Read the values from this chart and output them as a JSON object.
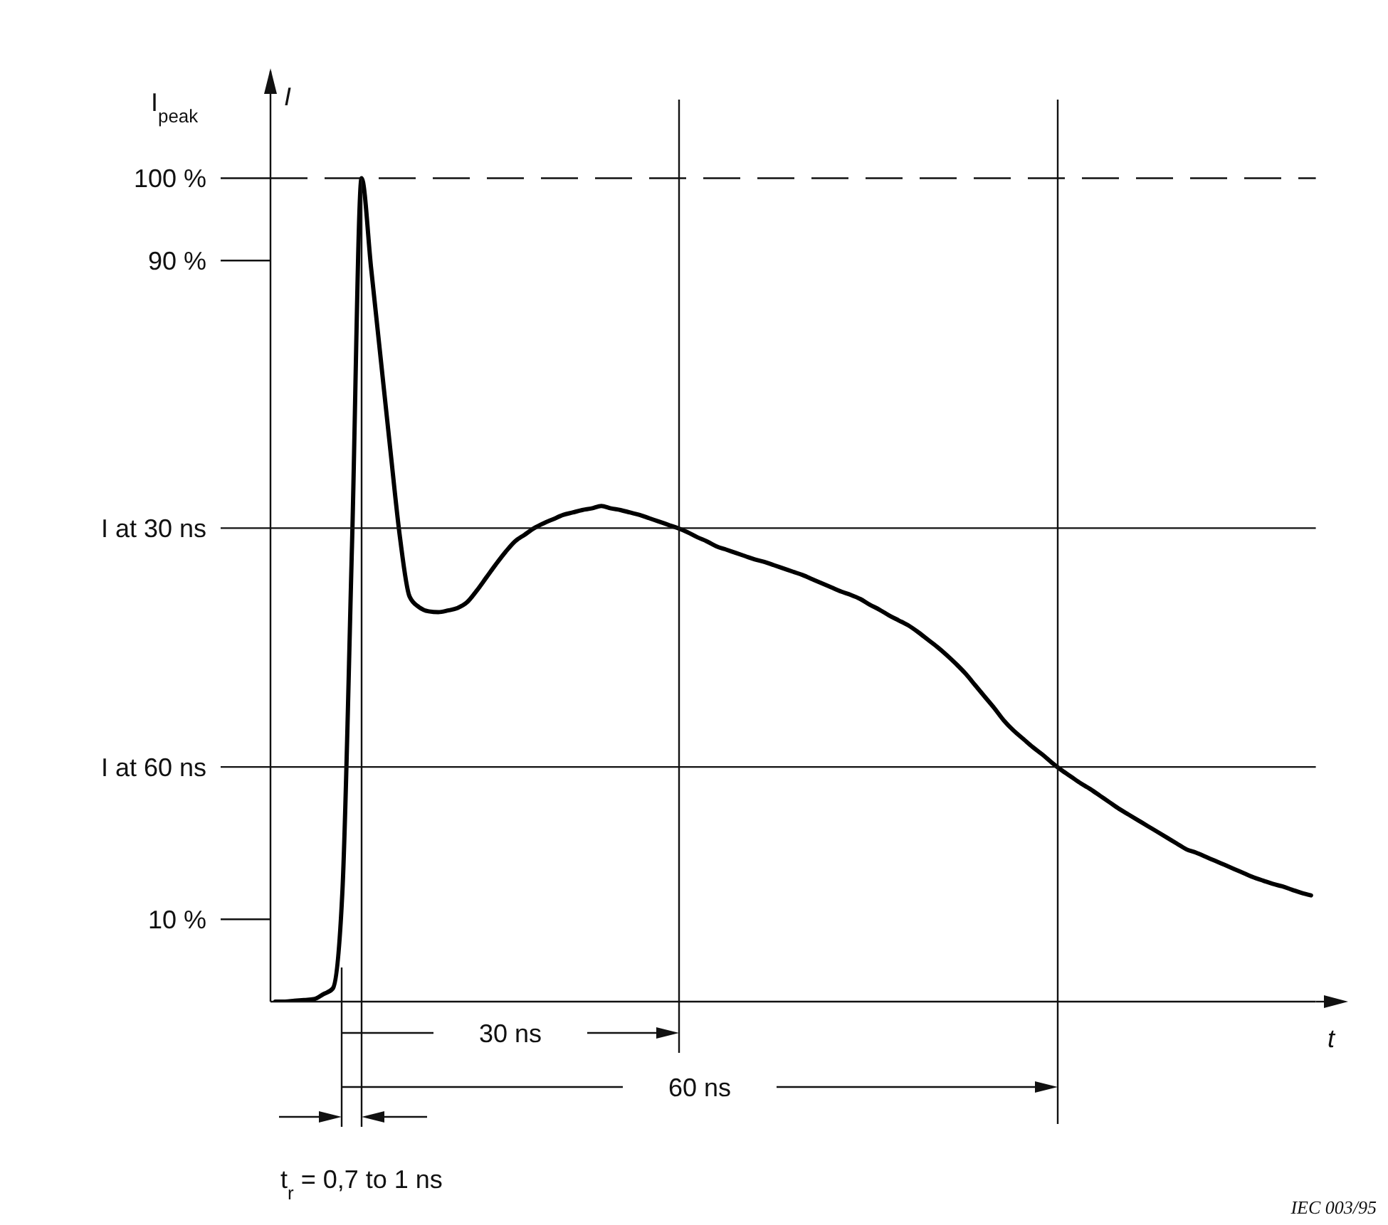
{
  "chart_data": {
    "type": "line",
    "xlabel": "t",
    "ylabel": "I",
    "annotations": [
      "I$_{peak}$",
      "30 ns",
      "60 ns",
      "t$_{r}$ = 0,7 to 1 ns",
      "IEC 003/95"
    ],
    "categories": [
      null,
      null,
      null,
      null,
      null,
      null,
      null,
      null,
      null,
      null,
      null,
      null,
      null,
      null,
      null,
      null,
      null,
      null,
      null,
      null,
      null,
      null,
      null,
      null,
      null,
      null,
      null,
      null,
      null,
      null,
      null,
      null,
      null,
      null,
      null,
      null,
      null,
      null,
      null,
      null,
      null,
      null,
      null,
      null,
      null,
      null,
      null,
      null,
      null,
      null,
      null,
      null,
      null,
      null,
      null,
      null,
      null,
      null,
      null,
      null,
      null,
      null,
      null,
      null,
      null,
      null,
      null,
      null,
      null,
      null,
      null,
      null,
      null,
      null,
      null,
      null,
      null,
      null,
      null,
      null,
      null,
      null,
      null,
      null,
      null,
      null,
      null,
      null,
      null,
      null,
      null,
      null,
      null,
      null,
      null,
      null,
      null,
      null,
      null,
      null,
      null,
      null,
      null,
      null,
      null,
      null,
      null,
      null,
      null
    ],
    "series": [
      {
        "color": "#000000",
        "values": [
          0,
          0,
          0.1,
          0.2,
          0.3,
          0.9,
          1.6,
          13.4,
          55.4,
          100,
          89,
          78,
          67,
          56.4,
          49.2,
          47.9,
          47.4,
          47.3,
          47.5,
          47.8,
          48.5,
          49.9,
          51.5,
          53.1,
          54.6,
          55.9,
          56.7,
          57.5,
          58.1,
          58.6,
          59.1,
          59.4,
          59.7,
          59.9,
          60.2,
          59.9,
          59.7,
          59.4,
          59.1,
          58.7,
          58.3,
          57.9,
          57.5,
          57,
          56.4,
          55.9,
          55.3,
          54.9,
          54.5,
          54.1,
          53.7,
          53.4,
          53,
          52.6,
          52.2,
          51.8,
          51.3,
          50.8,
          50.3,
          49.8,
          49.4,
          48.9,
          48.2,
          47.6,
          46.9,
          46.3,
          45.7,
          44.9,
          44,
          43.1,
          42.1,
          41,
          39.8,
          38.4,
          37,
          35.6,
          34.1,
          32.9,
          31.9,
          30.9,
          30,
          29,
          28.1,
          27.3,
          26.5,
          25.8,
          25,
          24.2,
          23.4,
          22.7,
          22,
          21.3,
          20.6,
          19.9,
          19.2,
          18.5,
          18.1,
          17.6,
          17.1,
          16.6,
          16.1,
          15.6,
          15.1,
          14.7,
          14.3,
          14,
          13.6,
          13.2,
          12.9
        ]
      }
    ],
    "ylim": [
      0,
      113
    ],
    "yticks": [
      {
        "value": 100,
        "label": "100 %"
      },
      {
        "value": 90,
        "label": "90 %"
      },
      {
        "value": 57.5,
        "label": "I at 30 ns"
      },
      {
        "value": 28.5,
        "label": "I at 60 ns"
      },
      {
        "value": 10,
        "label": "10 %"
      }
    ],
    "tick_labels": "y",
    "grid": false,
    "ref_lines": [
      {
        "axis": "y",
        "value": 100,
        "line_style": "dashed"
      },
      {
        "axis": "y",
        "value": 57.5
      },
      {
        "axis": "y",
        "value": 28.5
      }
    ]
  }
}
